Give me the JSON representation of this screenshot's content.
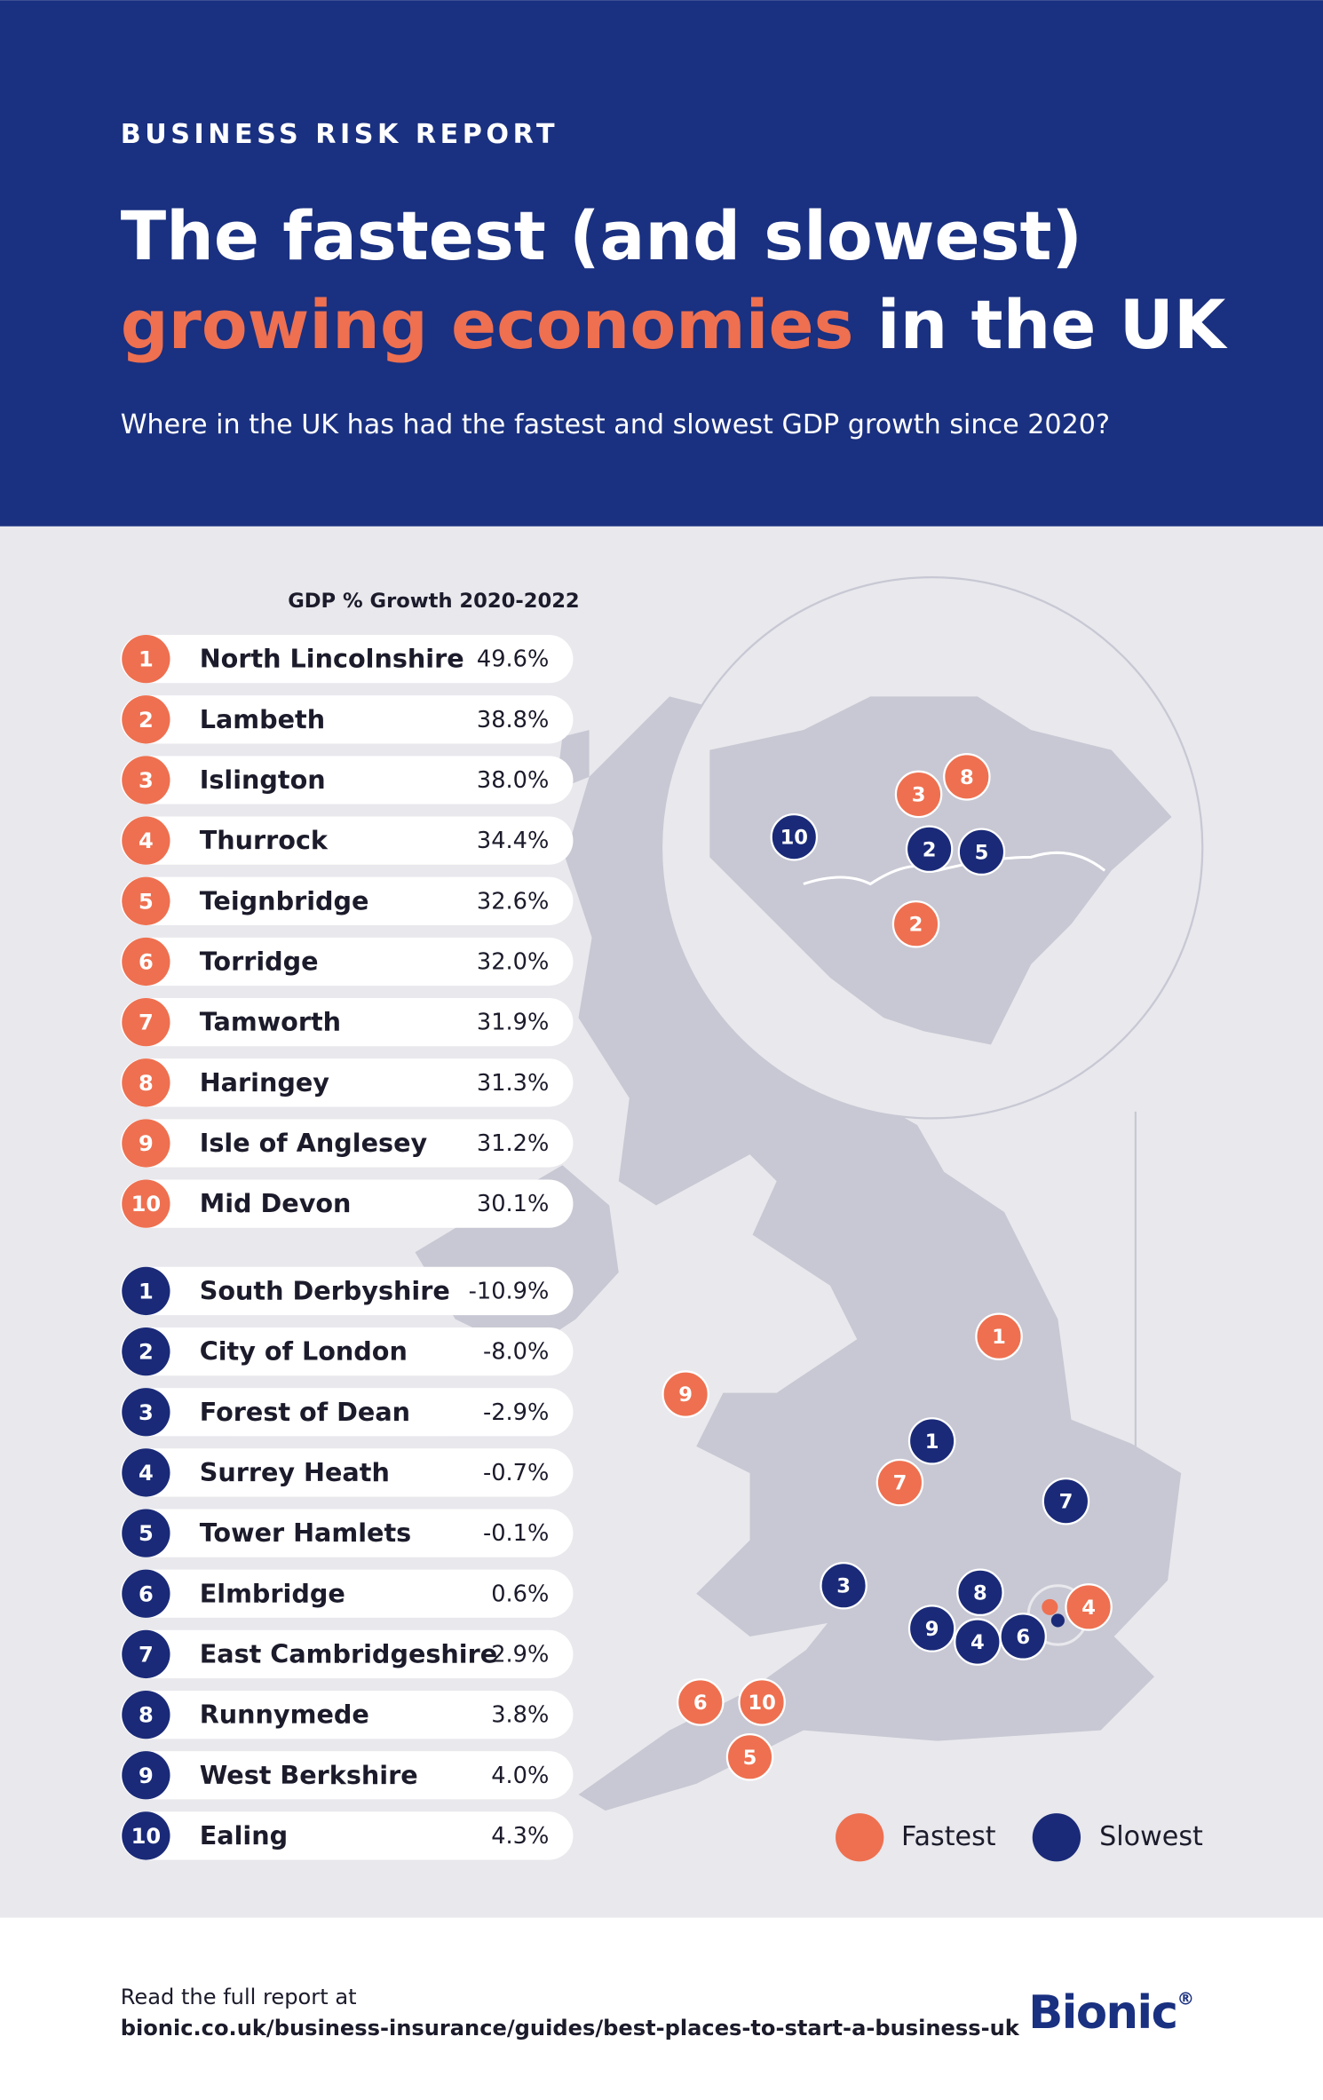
{
  "header": {
    "kicker": "BUSINESS RISK REPORT",
    "title_line1": "The fastest (and slowest)",
    "title_highlight": "growing economies",
    "title_rest": " in the UK",
    "subtitle": "Where in the UK has had the fastest and slowest GDP growth since 2020?"
  },
  "table": {
    "heading": "GDP % Growth 2020-2022",
    "fastest": [
      {
        "rank": "1",
        "name": "North Lincolnshire",
        "value": "49.6%"
      },
      {
        "rank": "2",
        "name": "Lambeth",
        "value": "38.8%"
      },
      {
        "rank": "3",
        "name": "Islington",
        "value": "38.0%"
      },
      {
        "rank": "4",
        "name": "Thurrock",
        "value": "34.4%"
      },
      {
        "rank": "5",
        "name": "Teignbridge",
        "value": "32.6%"
      },
      {
        "rank": "6",
        "name": "Torridge",
        "value": "32.0%"
      },
      {
        "rank": "7",
        "name": "Tamworth",
        "value": "31.9%"
      },
      {
        "rank": "8",
        "name": "Haringey",
        "value": "31.3%"
      },
      {
        "rank": "9",
        "name": "Isle of Anglesey",
        "value": "31.2%"
      },
      {
        "rank": "10",
        "name": "Mid Devon",
        "value": "30.1%"
      }
    ],
    "slowest": [
      {
        "rank": "1",
        "name": "South Derbyshire",
        "value": "-10.9%"
      },
      {
        "rank": "2",
        "name": "City of London",
        "value": "-8.0%"
      },
      {
        "rank": "3",
        "name": "Forest of Dean",
        "value": "-2.9%"
      },
      {
        "rank": "4",
        "name": "Surrey Heath",
        "value": "-0.7%"
      },
      {
        "rank": "5",
        "name": "Tower Hamlets",
        "value": "-0.1%"
      },
      {
        "rank": "6",
        "name": "Elmbridge",
        "value": "0.6%"
      },
      {
        "rank": "7",
        "name": "East Cambridgeshire",
        "value": "2.9%"
      },
      {
        "rank": "8",
        "name": "Runnymede",
        "value": "3.8%"
      },
      {
        "rank": "9",
        "name": "West Berkshire",
        "value": "4.0%"
      },
      {
        "rank": "10",
        "name": "Ealing",
        "value": "4.3%"
      }
    ]
  },
  "map": {
    "markers": [
      {
        "label": "1",
        "group": "fastest"
      },
      {
        "label": "7",
        "group": "fastest"
      },
      {
        "label": "9",
        "group": "fastest"
      },
      {
        "label": "4",
        "group": "fastest"
      },
      {
        "label": "6",
        "group": "fastest"
      },
      {
        "label": "10",
        "group": "fastest"
      },
      {
        "label": "5",
        "group": "fastest"
      },
      {
        "label": "3",
        "group": "fastest"
      },
      {
        "label": "8",
        "group": "fastest"
      },
      {
        "label": "2",
        "group": "fastest"
      },
      {
        "label": "1",
        "group": "slowest"
      },
      {
        "label": "7",
        "group": "slowest"
      },
      {
        "label": "3",
        "group": "slowest"
      },
      {
        "label": "8",
        "group": "slowest"
      },
      {
        "label": "9",
        "group": "slowest"
      },
      {
        "label": "4",
        "group": "slowest"
      },
      {
        "label": "6",
        "group": "slowest"
      },
      {
        "label": "10",
        "group": "slowest"
      },
      {
        "label": "2",
        "group": "slowest"
      },
      {
        "label": "5",
        "group": "slowest"
      }
    ],
    "legend": {
      "fastest": "Fastest",
      "slowest": "Slowest"
    }
  },
  "footer": {
    "lead": "Read the full report at",
    "url": "bionic.co.uk/business-insurance/guides/best-places-to-start-a-business-uk",
    "logo": "Bionic",
    "logo_mark": "®"
  }
}
